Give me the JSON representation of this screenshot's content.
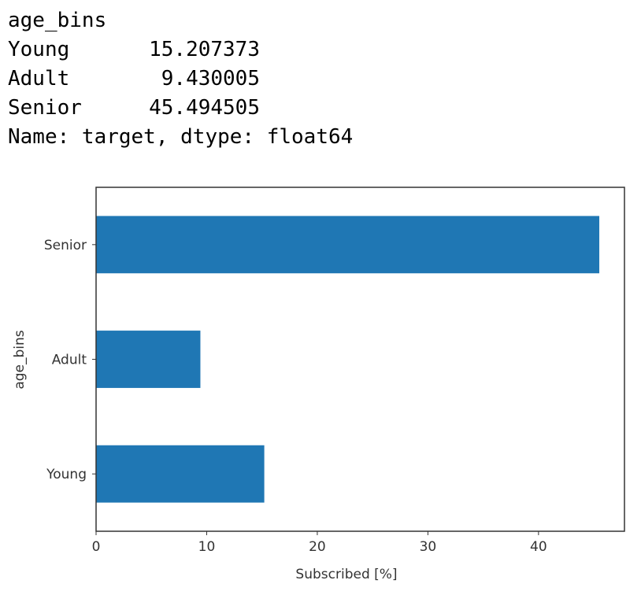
{
  "output": {
    "header": "age_bins",
    "rows": [
      [
        "Young",
        "15.207373"
      ],
      [
        "Adult",
        "9.430005"
      ],
      [
        "Senior",
        "45.494505"
      ]
    ],
    "footer": "Name: target, dtype: float64"
  },
  "chart_data": {
    "type": "barh",
    "categories": [
      "Young",
      "Adult",
      "Senior"
    ],
    "values": [
      15.207373,
      9.430005,
      45.494505
    ],
    "color": "#1f77b4",
    "xlabel": "Subscribed [%]",
    "ylabel": "age_bins",
    "xlim": [
      0,
      47.77
    ],
    "xticks": [
      0,
      10,
      20,
      30,
      40
    ]
  }
}
